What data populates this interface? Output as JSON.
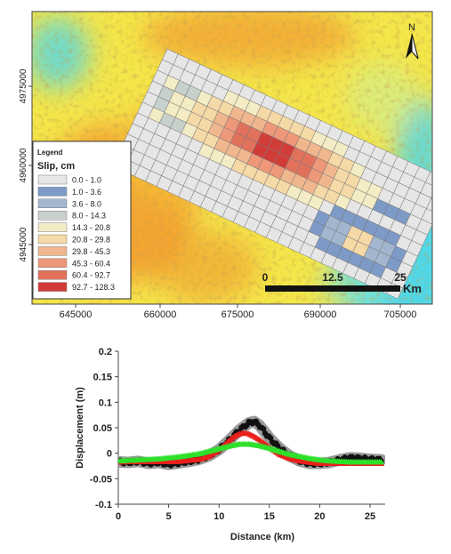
{
  "map": {
    "colors": {
      "background_yellow": "#f4e64a",
      "warm_orange": "#f29a2e",
      "cyan": "#47d6f0",
      "grid_cell": "#e8e8e8",
      "grid_line": "#7a7a7a"
    },
    "y_ticks": [
      "4975000",
      "4960000",
      "4945000"
    ],
    "x_ticks": [
      "645000",
      "660000",
      "675000",
      "690000",
      "705000"
    ],
    "north_label": "N",
    "scale_bar": {
      "labels": [
        "0",
        "12.5",
        "25"
      ],
      "unit": "Km"
    },
    "legend": {
      "title": "Legend",
      "subtitle": "Slip, cm",
      "classes": [
        {
          "label": "0.0 - 1.0",
          "color": "#e6e6e6"
        },
        {
          "label": "1.0 - 3.6",
          "color": "#7e9ac7"
        },
        {
          "label": "3.6 - 8.0",
          "color": "#a3b6cf"
        },
        {
          "label": "8.0 - 14.3",
          "color": "#c8d0cc"
        },
        {
          "label": "14.3 - 20.8",
          "color": "#f3ecc4"
        },
        {
          "label": "20.8 - 29.8",
          "color": "#f5d9a6"
        },
        {
          "label": "29.8 - 45.3",
          "color": "#f0b78e"
        },
        {
          "label": "45.3 - 60.4",
          "color": "#ee9879"
        },
        {
          "label": "60.4 - 92.7",
          "color": "#e2715c"
        },
        {
          "label": "92.7 - 128.3",
          "color": "#d23c38"
        }
      ]
    }
  },
  "chart_data": {
    "type": "scatter",
    "xlabel": "Distance (km)",
    "ylabel": "Displacement (m)",
    "xlim": [
      0,
      26.5
    ],
    "ylim": [
      -0.1,
      0.2
    ],
    "x_ticks": [
      0,
      5,
      10,
      15,
      20,
      25
    ],
    "y_ticks": [
      -0.1,
      -0.05,
      0,
      0.05,
      0.1,
      0.15,
      0.2
    ],
    "y_tick_labels": [
      "-0.1",
      "-0.05",
      "0",
      "0.05",
      "0.1",
      "0.15",
      "0.2"
    ],
    "series": [
      {
        "color": "#9a9a9a",
        "marker": "circle",
        "x": [
          0,
          1,
          2,
          3,
          4,
          5,
          6,
          7,
          8,
          9,
          10,
          11,
          12,
          13,
          13.5,
          14,
          15,
          16,
          17,
          18,
          19,
          20,
          21,
          22,
          23,
          24,
          25,
          26
        ],
        "y": [
          -0.017,
          -0.018,
          -0.016,
          -0.02,
          -0.018,
          -0.022,
          -0.019,
          -0.016,
          -0.012,
          -0.005,
          0.007,
          0.025,
          0.045,
          0.06,
          0.062,
          0.055,
          0.03,
          0.01,
          -0.005,
          -0.015,
          -0.02,
          -0.02,
          -0.018,
          -0.013,
          -0.009,
          -0.01,
          -0.012,
          -0.013
        ]
      },
      {
        "color": "#111111",
        "marker": "circle",
        "x": [
          0,
          1,
          2,
          3,
          4,
          5,
          6,
          7,
          8,
          9,
          10,
          11,
          12,
          13,
          13.5,
          14,
          15,
          16,
          17,
          18,
          19,
          20,
          21,
          22,
          23,
          24,
          25,
          26
        ],
        "y": [
          -0.017,
          -0.018,
          -0.016,
          -0.02,
          -0.018,
          -0.022,
          -0.019,
          -0.016,
          -0.012,
          -0.005,
          0.007,
          0.025,
          0.045,
          0.06,
          0.062,
          0.055,
          0.03,
          0.01,
          -0.005,
          -0.015,
          -0.02,
          -0.02,
          -0.018,
          -0.013,
          -0.009,
          -0.01,
          -0.012,
          -0.013
        ]
      },
      {
        "color": "#e8201c",
        "marker": "triangle",
        "x": [
          0,
          2,
          4,
          6,
          8,
          9,
          10,
          11,
          11.5,
          12,
          12.5,
          13,
          13.5,
          14,
          15,
          16,
          17,
          18,
          20,
          22,
          24,
          26
        ],
        "y": [
          -0.017,
          -0.016,
          -0.016,
          -0.016,
          -0.012,
          -0.006,
          0.007,
          0.025,
          0.033,
          0.038,
          0.04,
          0.038,
          0.033,
          0.027,
          0.012,
          -0.002,
          -0.01,
          -0.015,
          -0.02,
          -0.02,
          -0.02,
          -0.02
        ]
      },
      {
        "color": "#2ee02b",
        "marker": "triangle",
        "x": [
          0,
          1,
          2,
          3,
          4,
          5,
          6,
          7,
          8,
          9,
          10,
          11,
          12,
          13,
          14,
          15,
          16,
          17,
          18,
          19,
          20,
          21,
          22,
          23,
          24,
          25,
          26
        ],
        "y": [
          -0.015,
          -0.014,
          -0.013,
          -0.012,
          -0.011,
          -0.009,
          -0.007,
          -0.004,
          -0.001,
          0.004,
          0.009,
          0.014,
          0.018,
          0.018,
          0.015,
          0.01,
          0.004,
          -0.002,
          -0.006,
          -0.01,
          -0.013,
          -0.015,
          -0.016,
          -0.017,
          -0.017,
          -0.017,
          -0.017
        ]
      }
    ]
  }
}
